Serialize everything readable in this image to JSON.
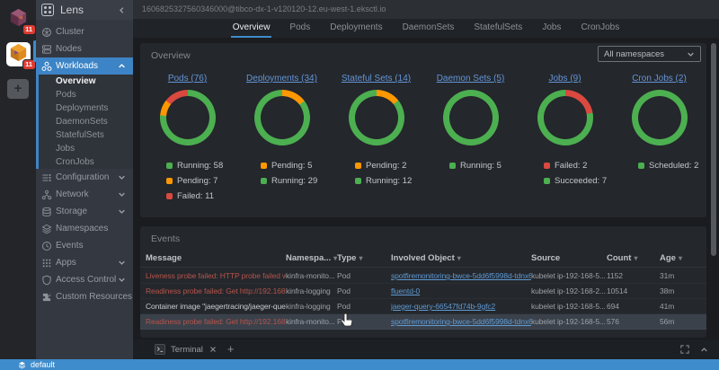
{
  "rail": {
    "clusters": [
      {
        "name": "cluster-1",
        "badge": "11",
        "active": false
      },
      {
        "name": "cluster-2",
        "badge": "11",
        "active": true
      }
    ],
    "add_cluster_label": "+"
  },
  "sidebar": {
    "app_name": "Lens",
    "items": [
      {
        "label": "Cluster",
        "icon": "cluster-icon"
      },
      {
        "label": "Nodes",
        "icon": "nodes-icon"
      },
      {
        "label": "Workloads",
        "icon": "workloads-icon",
        "active": true,
        "expanded": true,
        "children": [
          {
            "label": "Overview",
            "active": true
          },
          {
            "label": "Pods"
          },
          {
            "label": "Deployments"
          },
          {
            "label": "DaemonSets"
          },
          {
            "label": "StatefulSets"
          },
          {
            "label": "Jobs"
          },
          {
            "label": "CronJobs"
          }
        ]
      },
      {
        "label": "Configuration",
        "icon": "configuration-icon",
        "expandable": true
      },
      {
        "label": "Network",
        "icon": "network-icon",
        "expandable": true
      },
      {
        "label": "Storage",
        "icon": "storage-icon",
        "expandable": true
      },
      {
        "label": "Namespaces",
        "icon": "namespaces-icon"
      },
      {
        "label": "Events",
        "icon": "events-icon"
      },
      {
        "label": "Apps",
        "icon": "apps-icon",
        "expandable": true
      },
      {
        "label": "Access Control",
        "icon": "access-control-icon",
        "expandable": true
      },
      {
        "label": "Custom Resources",
        "icon": "custom-resources-icon",
        "expandable": true
      }
    ]
  },
  "topbar": {
    "cluster_url": "1606825327560346000@tibco-dx-1-v120120-12.eu-west-1.eksctl.io"
  },
  "tabs": {
    "active": "Overview",
    "items": [
      "Overview",
      "Pods",
      "Deployments",
      "DaemonSets",
      "StatefulSets",
      "Jobs",
      "CronJobs"
    ]
  },
  "overview": {
    "title": "Overview",
    "namespace_filter": "All namespaces"
  },
  "chart_data": [
    {
      "type": "pie",
      "title": "Pods (76)",
      "total": 76,
      "series": [
        {
          "name": "Running",
          "value": 58,
          "color": "#4caf50"
        },
        {
          "name": "Pending",
          "value": 7,
          "color": "#ff9800"
        },
        {
          "name": "Failed",
          "value": 11,
          "color": "#d9493f"
        }
      ]
    },
    {
      "type": "pie",
      "title": "Deployments (34)",
      "total": 34,
      "series": [
        {
          "name": "Pending",
          "value": 5,
          "color": "#ff9800"
        },
        {
          "name": "Running",
          "value": 29,
          "color": "#4caf50"
        }
      ]
    },
    {
      "type": "pie",
      "title": "Stateful Sets (14)",
      "total": 14,
      "series": [
        {
          "name": "Pending",
          "value": 2,
          "color": "#ff9800"
        },
        {
          "name": "Running",
          "value": 12,
          "color": "#4caf50"
        }
      ]
    },
    {
      "type": "pie",
      "title": "Daemon Sets (5)",
      "total": 5,
      "series": [
        {
          "name": "Running",
          "value": 5,
          "color": "#4caf50"
        }
      ]
    },
    {
      "type": "pie",
      "title": "Jobs (9)",
      "total": 9,
      "series": [
        {
          "name": "Failed",
          "value": 2,
          "color": "#d9493f"
        },
        {
          "name": "Succeeded",
          "value": 7,
          "color": "#4caf50"
        }
      ]
    },
    {
      "type": "pie",
      "title": "Cron Jobs (2)",
      "total": 2,
      "series": [
        {
          "name": "Scheduled",
          "value": 2,
          "color": "#4caf50"
        }
      ]
    }
  ],
  "events": {
    "title": "Events",
    "columns": [
      {
        "label": "Message",
        "sortable": false
      },
      {
        "label": "Namespa...",
        "sortable": true
      },
      {
        "label": "Type",
        "sortable": true
      },
      {
        "label": "Involved Object",
        "sortable": true
      },
      {
        "label": "Source",
        "sortable": false
      },
      {
        "label": "Count",
        "sortable": true
      },
      {
        "label": "Age",
        "sortable": true
      }
    ],
    "rows": [
      {
        "message": "Liveness probe failed: HTTP probe failed wit...",
        "error": true,
        "namespace": "kinfra-monito...",
        "type": "Pod",
        "involved_object": "spotfiremonitoring-bwce-5dd6f5998d-tdnx6",
        "source": "kubelet ip-192-168-5...",
        "count": "1152",
        "age": "31m",
        "highlighted": false
      },
      {
        "message": "Readiness probe failed: Get http://192.168.6...",
        "error": true,
        "namespace": "kinfra-logging",
        "type": "Pod",
        "involved_object": "fluentd-0",
        "source": "kubelet ip-192-168-2...",
        "count": "10514",
        "age": "38m",
        "highlighted": false
      },
      {
        "message": "Container image \"jaegertracing/jaeger-query...",
        "error": false,
        "namespace": "kinfra-logging",
        "type": "Pod",
        "involved_object": "jaeger-query-66547fd74b-9gfc2",
        "source": "kubelet ip-192-168-5...",
        "count": "694",
        "age": "41m",
        "highlighted": false
      },
      {
        "message": "Readiness probe failed: Get http://192.168.3...",
        "error": true,
        "namespace": "kinfra-monito...",
        "type": "Pod",
        "involved_object": "spotfiremonitoring-bwce-5dd6f5998d-tdnx6",
        "source": "kubelet ip-192-168-5...",
        "count": "576",
        "age": "56m",
        "highlighted": true
      }
    ]
  },
  "terminal": {
    "tab_label": "Terminal",
    "new_tab_label": "+"
  },
  "status_bar": {
    "namespace": "default"
  },
  "colors": {
    "accent_blue": "#3d84c6",
    "statusbar_blue": "#3e8ccc",
    "link_blue": "#6495d6",
    "table_link_blue": "#5f9ad2",
    "error_red_text": "#b5544b",
    "success_green": "#4caf50",
    "warning_orange": "#ff9800",
    "failed_red": "#d9493f",
    "badge_red": "#dd3b33"
  }
}
